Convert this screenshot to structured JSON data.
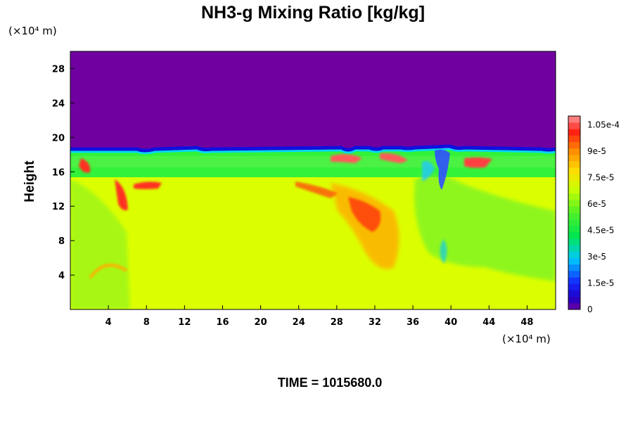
{
  "chart_data": {
    "type": "heatmap",
    "title": "NH3-g Mixing Ratio [kg/kg]",
    "ylabel": "Height",
    "x_unit": "(×10⁴ m)",
    "y_unit": "(×10⁴ m)",
    "xlim": [
      0,
      51
    ],
    "ylim": [
      0,
      30
    ],
    "x_ticks": [
      4,
      8,
      12,
      16,
      20,
      24,
      28,
      32,
      36,
      40,
      44,
      48
    ],
    "y_ticks": [
      4,
      8,
      12,
      16,
      20,
      24,
      28
    ],
    "colorbar": {
      "min": 0,
      "max": 0.00011,
      "tick_values": [
        0,
        1.5e-05,
        3e-05,
        4.5e-05,
        6e-05,
        7.5e-05,
        9e-05,
        0.000105
      ],
      "tick_labels": [
        "0",
        "1.5e-5",
        "3e-5",
        "4.5e-5",
        "6e-5",
        "7.5e-5",
        "9e-5",
        "1.05e-4"
      ]
    },
    "field_summary": {
      "upper_layer": {
        "y_range": [
          18.5,
          30
        ],
        "value": 0
      },
      "inversion_layer": {
        "y_range": [
          15.5,
          18.5
        ],
        "value": 6e-05
      },
      "lower_layer": {
        "y_range": [
          0,
          15.5
        ],
        "value": 7.75e-05
      }
    },
    "footer": "TIME = 1015680.0"
  },
  "colors": {
    "background": "#ffffff",
    "zero": "#7000a0"
  }
}
